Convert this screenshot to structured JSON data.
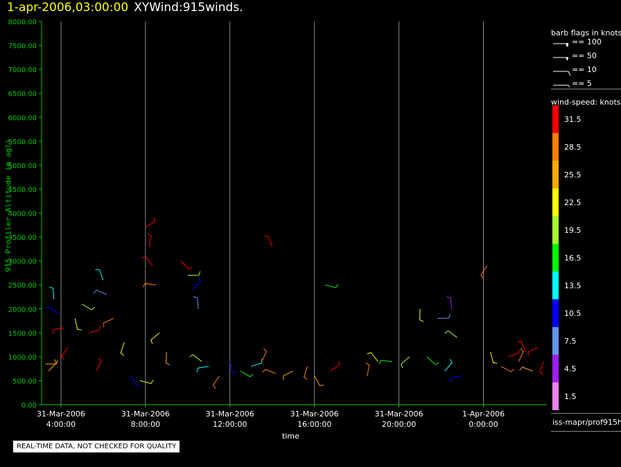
{
  "header": {
    "timestamp": "1-apr-2006,03:00:00",
    "name": "XYWind:915winds."
  },
  "footer": {
    "quality_note": "REAL-TIME DATA, NOT CHECKED FOR QUALITY"
  },
  "source_label": "iss-mapr/prof915h",
  "legend": {
    "barb_title": "barb flags in knots",
    "barbs": [
      {
        "label": "== 100",
        "kind": "flag"
      },
      {
        "label": "== 50",
        "kind": "triangle"
      },
      {
        "label": "== 10",
        "kind": "full"
      },
      {
        "label": "== 5",
        "kind": "half"
      }
    ],
    "speed_title": "wind-speed: knots",
    "speed_bins": [
      {
        "label": "31.5",
        "color": "#ff0000"
      },
      {
        "label": "28.5",
        "color": "#ff7f00"
      },
      {
        "label": "25.5",
        "color": "#ffaa00"
      },
      {
        "label": "22.5",
        "color": "#ffff00"
      },
      {
        "label": "19.5",
        "color": "#a5ff2f"
      },
      {
        "label": "16.5",
        "color": "#00ff00"
      },
      {
        "label": "13.5",
        "color": "#00ffff"
      },
      {
        "label": "10.5",
        "color": "#0000ff"
      },
      {
        "label": "7.5",
        "color": "#6495ed"
      },
      {
        "label": "4.5",
        "color": "#a020f0"
      },
      {
        "label": "1.5",
        "color": "#ee82ee"
      }
    ]
  },
  "chart_data": {
    "type": "scatter",
    "title": "XYWind:915winds.",
    "xlabel": "time",
    "ylabel": "915 Profiler Altitude (m agl)",
    "ylim": [
      0,
      8000
    ],
    "xlim": [
      "31-Mar-2006 03:05",
      "1-Apr-2006 03:00"
    ],
    "yticks": [
      "0.00",
      "500.00",
      "1000.00",
      "1500.00",
      "2000.00",
      "2500.00",
      "3000.00",
      "3500.00",
      "4000.00",
      "4500.00",
      "5000.00",
      "5500.00",
      "6000.00",
      "6500.00",
      "7000.00",
      "7500.00",
      "8000.00"
    ],
    "xticks": [
      {
        "date": "31-Mar-2006",
        "time": "4:00:00"
      },
      {
        "date": "31-Mar-2006",
        "time": "8:00:00"
      },
      {
        "date": "31-Mar-2006",
        "time": "12:00:00"
      },
      {
        "date": "31-Mar-2006",
        "time": "16:00:00"
      },
      {
        "date": "31-Mar-2006",
        "time": "20:00:00"
      },
      {
        "date": "1-Apr-2006",
        "time": "0:00:00"
      }
    ],
    "grid": "vertical",
    "series": [
      {
        "name": "wind barbs",
        "points": [
          {
            "time": "31-Mar-2006 03:15",
            "alt": 850,
            "speed": 25.5
          },
          {
            "time": "31-Mar-2006 03:25",
            "alt": 700,
            "speed": 25.5
          },
          {
            "time": "31-Mar-2006 03:40",
            "alt": 2200,
            "speed": 13.5
          },
          {
            "time": "31-Mar-2006 03:50",
            "alt": 1900,
            "speed": 10.5
          },
          {
            "time": "31-Mar-2006 04:10",
            "alt": 1600,
            "speed": 31.5
          },
          {
            "time": "31-Mar-2006 04:20",
            "alt": 1200,
            "speed": 31.5
          },
          {
            "time": "31-Mar-2006 04:40",
            "alt": 1800,
            "speed": 22.5
          },
          {
            "time": "31-Mar-2006 05:00",
            "alt": 2100,
            "speed": 19.5
          },
          {
            "time": "31-Mar-2006 05:20",
            "alt": 1500,
            "speed": 31.5
          },
          {
            "time": "31-Mar-2006 05:40",
            "alt": 700,
            "speed": 31.5
          },
          {
            "time": "31-Mar-2006 06:00",
            "alt": 2600,
            "speed": 13.5
          },
          {
            "time": "31-Mar-2006 06:10",
            "alt": 2300,
            "speed": 7.5
          },
          {
            "time": "31-Mar-2006 06:30",
            "alt": 1800,
            "speed": 28.5
          },
          {
            "time": "31-Mar-2006 07:00",
            "alt": 1300,
            "speed": 22.5
          },
          {
            "time": "31-Mar-2006 07:20",
            "alt": 600,
            "speed": 10.5
          },
          {
            "time": "31-Mar-2006 07:45",
            "alt": 500,
            "speed": 22.5
          },
          {
            "time": "31-Mar-2006 08:00",
            "alt": 3700,
            "speed": 31.5
          },
          {
            "time": "31-Mar-2006 08:10",
            "alt": 3300,
            "speed": 31.5
          },
          {
            "time": "31-Mar-2006 08:20",
            "alt": 2900,
            "speed": 31.5
          },
          {
            "time": "31-Mar-2006 08:30",
            "alt": 2500,
            "speed": 28.5
          },
          {
            "time": "31-Mar-2006 08:40",
            "alt": 1500,
            "speed": 22.5
          },
          {
            "time": "31-Mar-2006 09:00",
            "alt": 1100,
            "speed": 25.5
          },
          {
            "time": "31-Mar-2006 09:40",
            "alt": 3000,
            "speed": 31.5
          },
          {
            "time": "31-Mar-2006 10:00",
            "alt": 2700,
            "speed": 19.5
          },
          {
            "time": "31-Mar-2006 10:15",
            "alt": 2400,
            "speed": 10.5
          },
          {
            "time": "31-Mar-2006 10:30",
            "alt": 2000,
            "speed": 7.5
          },
          {
            "time": "31-Mar-2006 10:40",
            "alt": 900,
            "speed": 19.5
          },
          {
            "time": "31-Mar-2006 11:00",
            "alt": 800,
            "speed": 13.5
          },
          {
            "time": "31-Mar-2006 11:30",
            "alt": 600,
            "speed": 28.5
          },
          {
            "time": "31-Mar-2006 12:00",
            "alt": 900,
            "speed": 10.5
          },
          {
            "time": "31-Mar-2006 12:30",
            "alt": 700,
            "speed": 16.5
          },
          {
            "time": "31-Mar-2006 13:00",
            "alt": 800,
            "speed": 13.5
          },
          {
            "time": "31-Mar-2006 13:30",
            "alt": 900,
            "speed": 28.5
          },
          {
            "time": "31-Mar-2006 14:00",
            "alt": 3300,
            "speed": 31.5
          },
          {
            "time": "31-Mar-2006 14:10",
            "alt": 650,
            "speed": 28.5
          },
          {
            "time": "31-Mar-2006 15:00",
            "alt": 700,
            "speed": 25.5
          },
          {
            "time": "31-Mar-2006 15:40",
            "alt": 800,
            "speed": 28.5
          },
          {
            "time": "31-Mar-2006 16:00",
            "alt": 600,
            "speed": 25.5
          },
          {
            "time": "31-Mar-2006 16:30",
            "alt": 2500,
            "speed": 16.5
          },
          {
            "time": "31-Mar-2006 16:45",
            "alt": 700,
            "speed": 31.5
          },
          {
            "time": "31-Mar-2006 18:30",
            "alt": 600,
            "speed": 28.5
          },
          {
            "time": "31-Mar-2006 19:00",
            "alt": 900,
            "speed": 22.5
          },
          {
            "time": "31-Mar-2006 19:40",
            "alt": 900,
            "speed": 16.5
          },
          {
            "time": "31-Mar-2006 20:30",
            "alt": 1000,
            "speed": 19.5
          },
          {
            "time": "31-Mar-2006 21:00",
            "alt": 2000,
            "speed": 22.5
          },
          {
            "time": "31-Mar-2006 21:20",
            "alt": 1000,
            "speed": 16.5
          },
          {
            "time": "31-Mar-2006 21:50",
            "alt": 1800,
            "speed": 7.5
          },
          {
            "time": "31-Mar-2006 22:10",
            "alt": 700,
            "speed": 13.5
          },
          {
            "time": "31-Mar-2006 22:30",
            "alt": 2000,
            "speed": 4.5
          },
          {
            "time": "31-Mar-2006 22:45",
            "alt": 1400,
            "speed": 19.5
          },
          {
            "time": "31-Mar-2006 23:00",
            "alt": 600,
            "speed": 10.5
          },
          {
            "time": "1-Apr-2006 00:10",
            "alt": 2900,
            "speed": 28.5
          },
          {
            "time": "1-Apr-2006 00:20",
            "alt": 1100,
            "speed": 22.5
          },
          {
            "time": "1-Apr-2006 00:50",
            "alt": 800,
            "speed": 28.5
          },
          {
            "time": "1-Apr-2006 01:10",
            "alt": 1000,
            "speed": 31.5
          },
          {
            "time": "1-Apr-2006 01:40",
            "alt": 900,
            "speed": 28.5
          },
          {
            "time": "1-Apr-2006 02:00",
            "alt": 1100,
            "speed": 31.5
          },
          {
            "time": "1-Apr-2006 02:20",
            "alt": 700,
            "speed": 25.5
          },
          {
            "time": "1-Apr-2006 02:35",
            "alt": 1200,
            "speed": 31.5
          },
          {
            "time": "1-Apr-2006 02:50",
            "alt": 900,
            "speed": 31.5
          }
        ]
      }
    ]
  }
}
